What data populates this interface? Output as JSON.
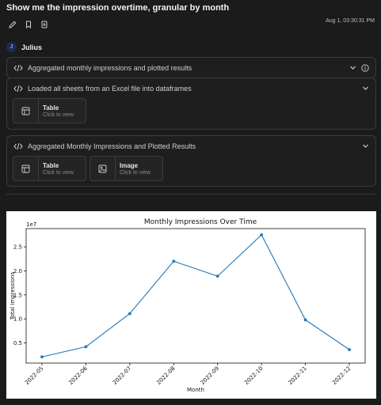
{
  "prompt": "Show me the impression overtime, granular by month",
  "timestamp": "Aug 1, 03:30:31 PM",
  "toolbar": {
    "icons": [
      "pencil-icon",
      "bookmark-icon",
      "export-icon"
    ]
  },
  "agent": {
    "initial": "J",
    "name": "Julius"
  },
  "steps": [
    {
      "title": "Aggregated monthly impressions and plotted results"
    },
    {
      "title": "Loaded all sheets from an Excel file into dataframes",
      "attachments": [
        {
          "title": "Table",
          "subtitle": "Click to view"
        }
      ]
    },
    {
      "title": "Aggregated Monthly Impressions and Plotted Results",
      "attachments": [
        {
          "title": "Table",
          "subtitle": "Click to view"
        },
        {
          "title": "Image",
          "subtitle": "Click to view"
        }
      ]
    }
  ],
  "colors": {
    "background": "#1b1b1b",
    "line": "#1f77b4"
  },
  "chart_data": {
    "type": "line",
    "title": "Monthly Impressions Over Time",
    "xlabel": "Month",
    "ylabel": "Total Impressions",
    "y_exponent_label": "1e7",
    "categories": [
      "2022-05",
      "2022-06",
      "2022-07",
      "2022-08",
      "2022-09",
      "2022-10",
      "2022-11",
      "2022-12"
    ],
    "values": [
      0.21,
      0.42,
      1.11,
      2.2,
      1.89,
      2.75,
      0.98,
      0.36
    ],
    "yticks": [
      0.5,
      1.0,
      1.5,
      2.0,
      2.5
    ],
    "ytick_labels": [
      "0.5",
      "1.0",
      "1.5",
      "2.0",
      "2.5"
    ],
    "ylim": [
      0.08,
      2.88
    ],
    "grid": false,
    "legend": false
  }
}
